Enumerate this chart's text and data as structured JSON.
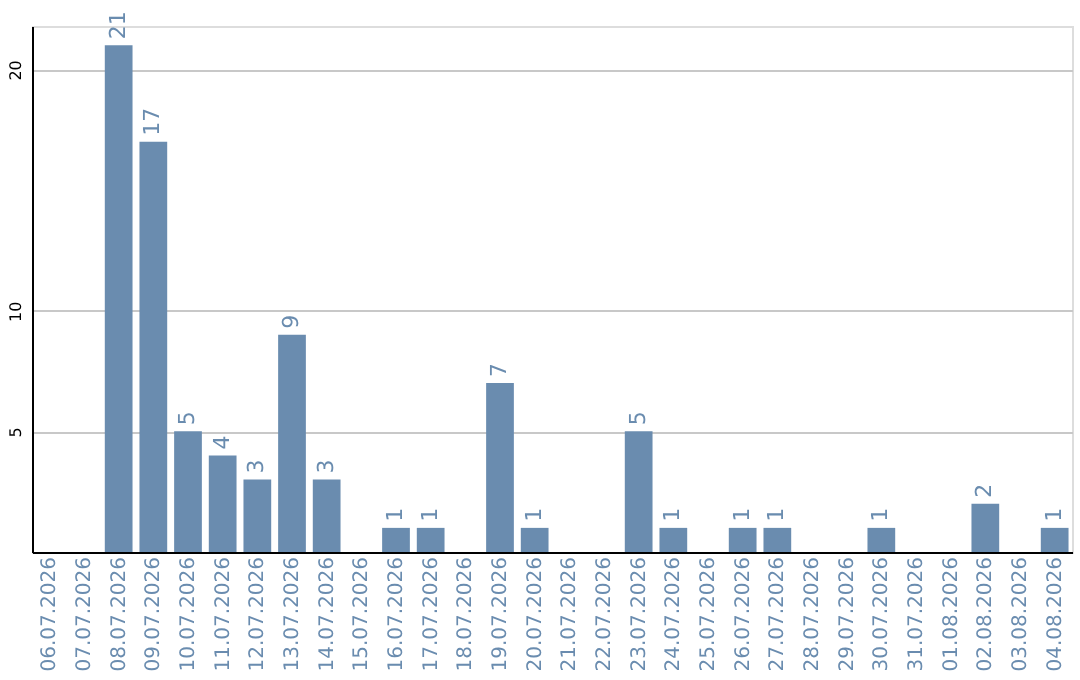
{
  "chart_data": {
    "type": "bar",
    "categories": [
      "06.07.2026",
      "07.07.2026",
      "08.07.2026",
      "09.07.2026",
      "10.07.2026",
      "11.07.2026",
      "12.07.2026",
      "13.07.2026",
      "14.07.2026",
      "15.07.2026",
      "16.07.2026",
      "17.07.2026",
      "18.07.2026",
      "19.07.2026",
      "20.07.2026",
      "21.07.2026",
      "22.07.2026",
      "23.07.2026",
      "24.07.2026",
      "25.07.2026",
      "26.07.2026",
      "27.07.2026",
      "28.07.2026",
      "29.07.2026",
      "30.07.2026",
      "31.07.2026",
      "01.08.2026",
      "02.08.2026",
      "03.08.2026",
      "04.08.2026"
    ],
    "values": [
      0,
      0,
      21,
      17,
      5,
      4,
      3,
      9,
      3,
      0,
      1,
      1,
      0,
      7,
      1,
      0,
      0,
      5,
      1,
      0,
      1,
      1,
      0,
      0,
      1,
      0,
      0,
      2,
      0,
      1
    ],
    "value_labels": [
      null,
      null,
      "21",
      "17",
      "5",
      "4",
      "3",
      "9",
      "3",
      null,
      "1",
      "1",
      null,
      "7",
      "1",
      null,
      null,
      "5",
      "1",
      null,
      "1",
      "1",
      null,
      null,
      "1",
      null,
      null,
      "2",
      null,
      "1"
    ],
    "color": "#6a8caf",
    "ylim": [
      0,
      21.8
    ],
    "yticks": [
      5,
      10,
      20
    ],
    "grid": "y"
  }
}
